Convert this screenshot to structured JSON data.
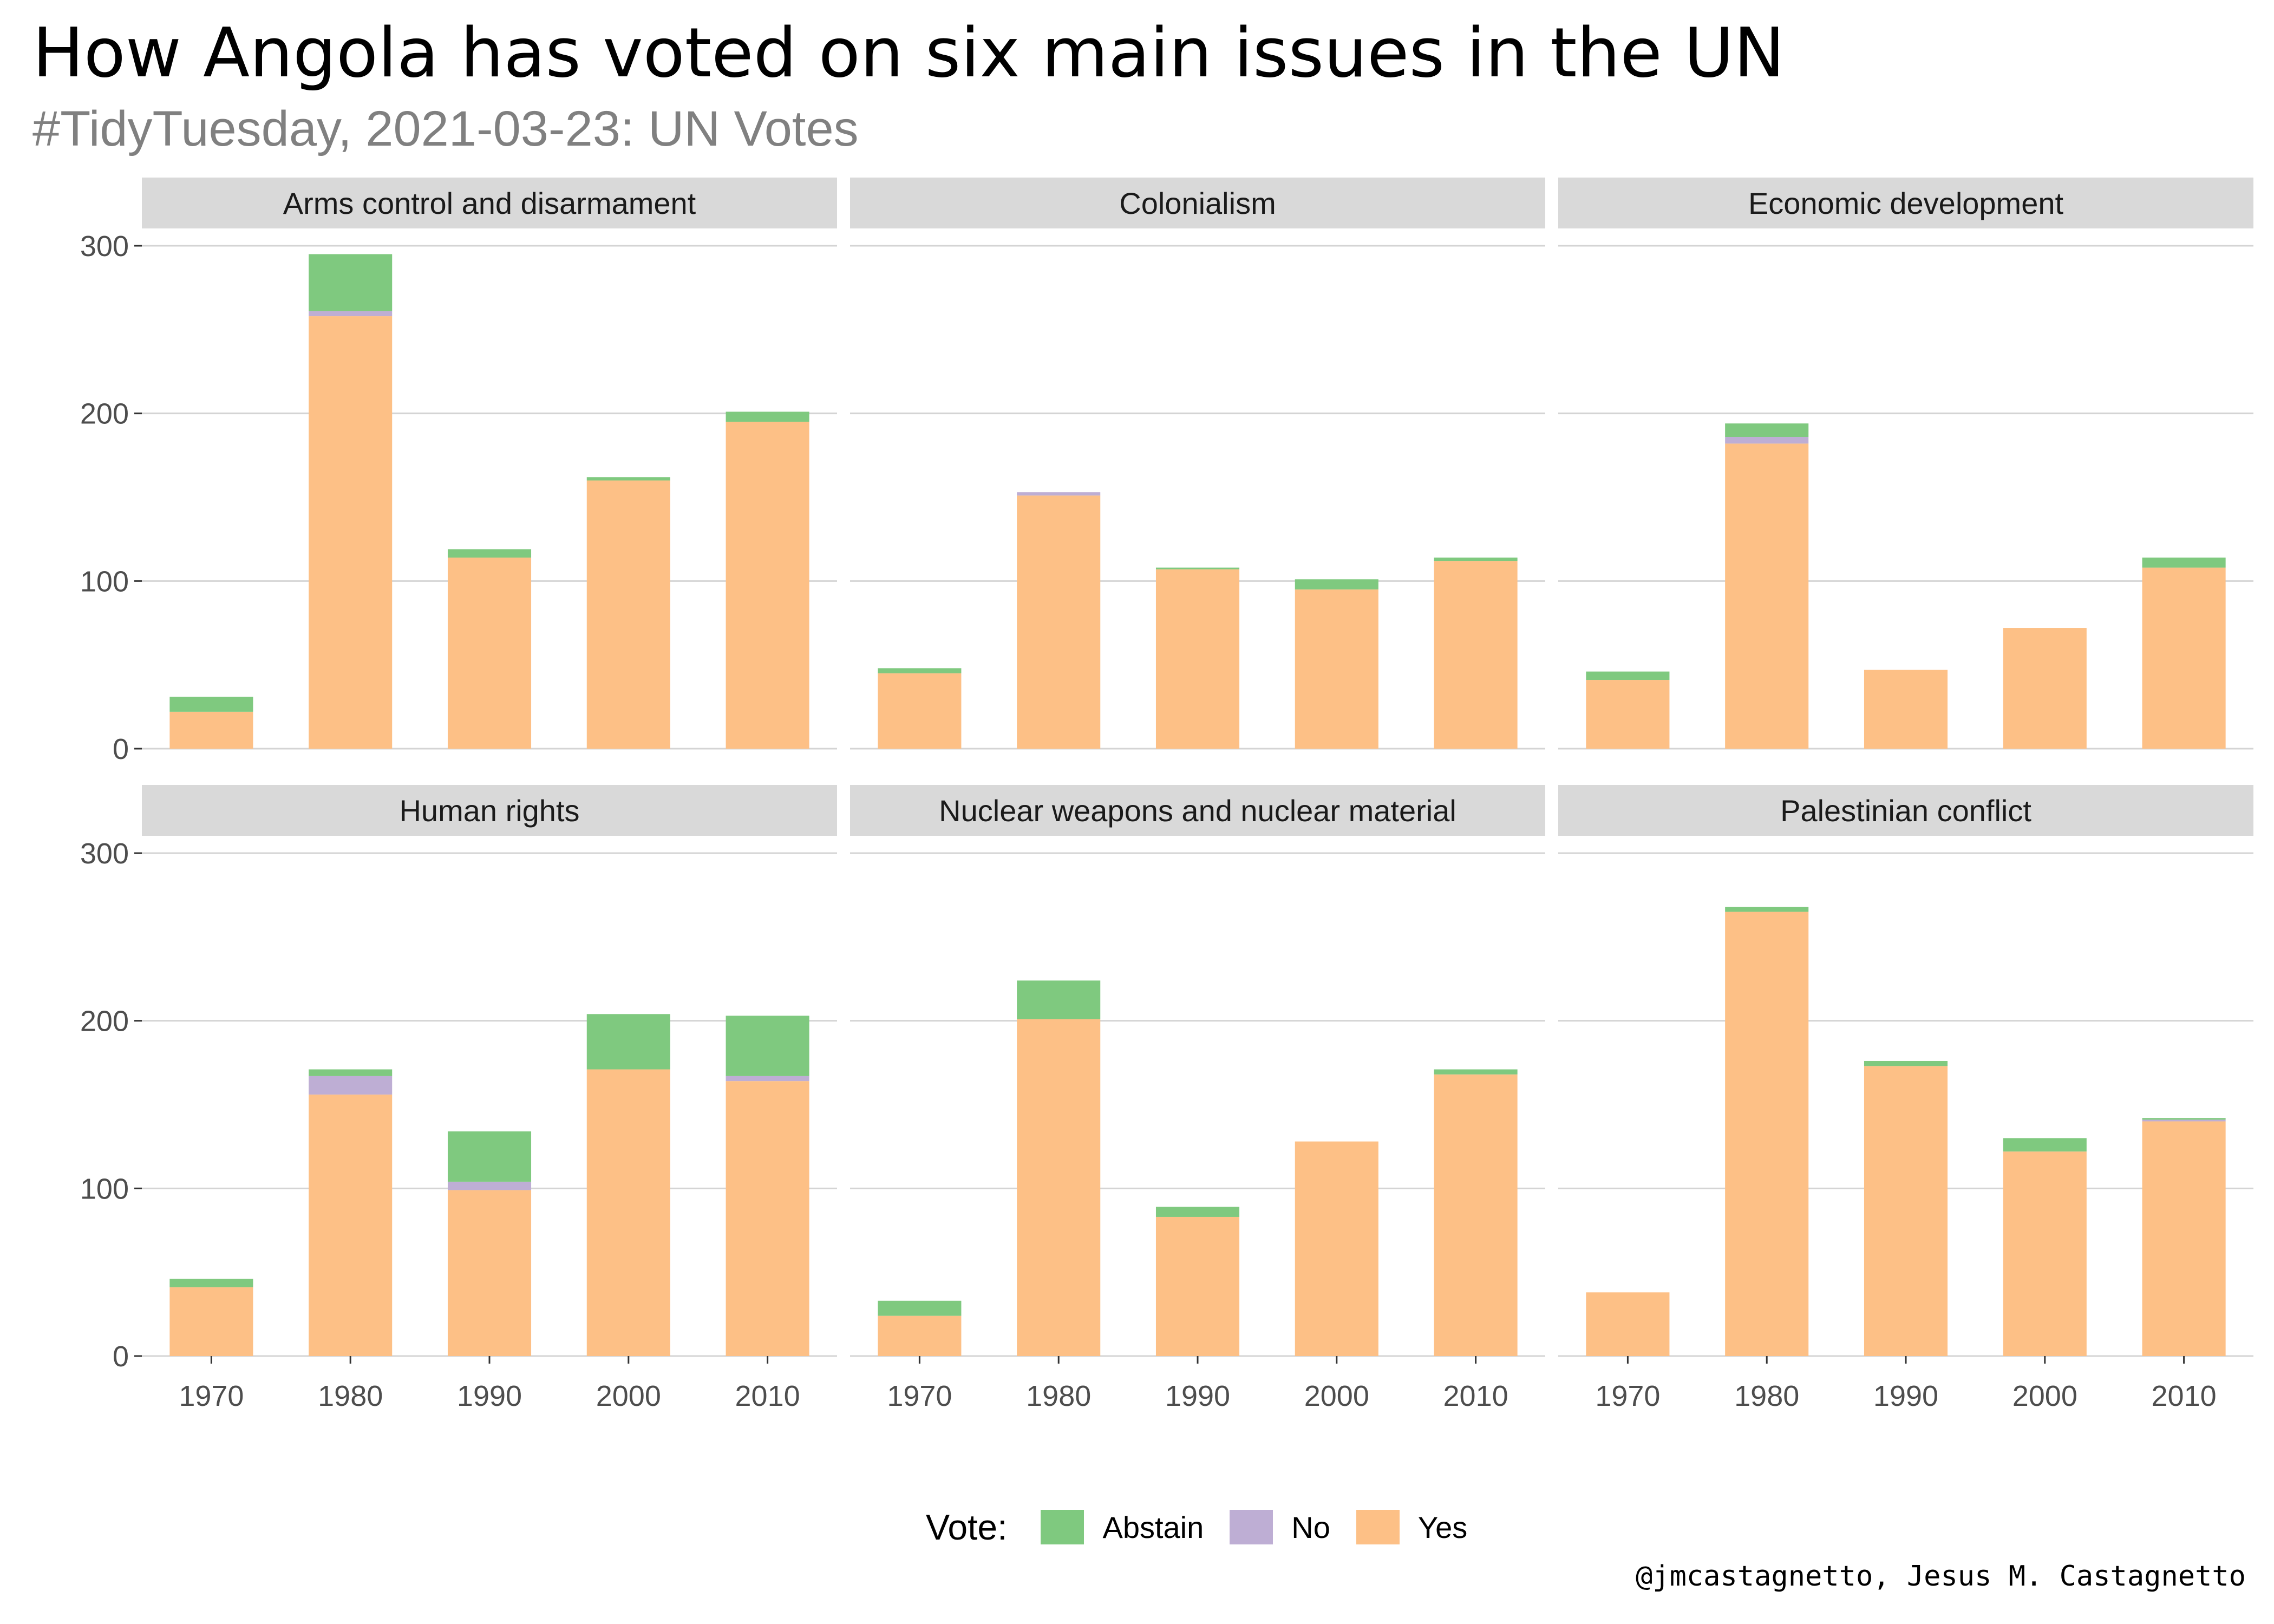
{
  "title": "How Angola has voted on six main issues in the UN",
  "subtitle": "#TidyTuesday, 2021-03-23: UN Votes",
  "caption": "@jmcastagnetto, Jesus M. Castagnetto",
  "legend": {
    "title": "Vote:",
    "items": [
      {
        "label": "Abstain",
        "color": "#7fc97f"
      },
      {
        "label": "No",
        "color": "#beaed4"
      },
      {
        "label": "Yes",
        "color": "#fdc086"
      }
    ]
  },
  "chart_data": {
    "type": "bar",
    "stacked": true,
    "facet_layout": "3 columns x 2 rows, shared y axis",
    "categories": [
      "1970",
      "1980",
      "1990",
      "2000",
      "2010"
    ],
    "y_ticks": [
      0,
      100,
      200,
      300
    ],
    "ylim": [
      0,
      320
    ],
    "grid": true,
    "legend_position": "bottom",
    "stack_order": [
      "Yes",
      "No",
      "Abstain"
    ],
    "facets": [
      {
        "title": "Arms control and disarmament",
        "series": [
          {
            "name": "Yes",
            "values": [
              22,
              258,
              114,
              160,
              195
            ]
          },
          {
            "name": "No",
            "values": [
              0,
              3,
              0,
              0,
              0
            ]
          },
          {
            "name": "Abstain",
            "values": [
              9,
              34,
              5,
              2,
              6
            ]
          }
        ]
      },
      {
        "title": "Colonialism",
        "series": [
          {
            "name": "Yes",
            "values": [
              45,
              151,
              107,
              95,
              112
            ]
          },
          {
            "name": "No",
            "values": [
              0,
              2,
              0,
              0,
              0
            ]
          },
          {
            "name": "Abstain",
            "values": [
              3,
              0,
              1,
              6,
              2
            ]
          }
        ]
      },
      {
        "title": "Economic development",
        "series": [
          {
            "name": "Yes",
            "values": [
              41,
              182,
              47,
              72,
              108
            ]
          },
          {
            "name": "No",
            "values": [
              0,
              4,
              0,
              0,
              0
            ]
          },
          {
            "name": "Abstain",
            "values": [
              5,
              8,
              0,
              0,
              6
            ]
          }
        ]
      },
      {
        "title": "Human rights",
        "series": [
          {
            "name": "Yes",
            "values": [
              41,
              156,
              99,
              171,
              164
            ]
          },
          {
            "name": "No",
            "values": [
              0,
              11,
              5,
              0,
              3
            ]
          },
          {
            "name": "Abstain",
            "values": [
              5,
              4,
              30,
              33,
              36
            ]
          }
        ]
      },
      {
        "title": "Nuclear weapons and nuclear material",
        "series": [
          {
            "name": "Yes",
            "values": [
              24,
              201,
              83,
              128,
              168
            ]
          },
          {
            "name": "No",
            "values": [
              0,
              0,
              0,
              0,
              0
            ]
          },
          {
            "name": "Abstain",
            "values": [
              9,
              23,
              6,
              0,
              3
            ]
          }
        ]
      },
      {
        "title": "Palestinian conflict",
        "series": [
          {
            "name": "Yes",
            "values": [
              38,
              265,
              173,
              122,
              140
            ]
          },
          {
            "name": "No",
            "values": [
              0,
              0,
              0,
              0,
              1
            ]
          },
          {
            "name": "Abstain",
            "values": [
              0,
              3,
              3,
              8,
              1
            ]
          }
        ]
      }
    ]
  }
}
